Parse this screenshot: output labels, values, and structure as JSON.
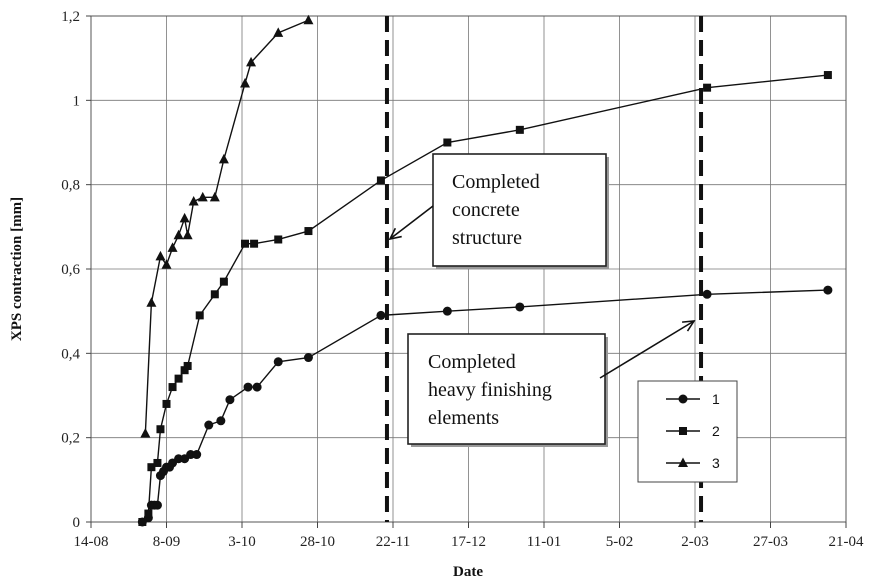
{
  "chart_data": {
    "type": "line",
    "xlabel": "Date",
    "ylabel": "XPS contraction [mm]",
    "x_tick_labels": [
      "14-08",
      "8-09",
      "3-10",
      "28-10",
      "22-11",
      "17-12",
      "11-01",
      "5-02",
      "2-03",
      "27-03",
      "21-04"
    ],
    "y_tick_labels": [
      "0",
      "0,2",
      "0,4",
      "0,6",
      "0,8",
      "1",
      "1,2"
    ],
    "xlim": [
      "14-08",
      "21-04"
    ],
    "ylim": [
      0,
      1.2
    ],
    "grid": true,
    "legend_position": "bottom-right",
    "series": [
      {
        "name": "1",
        "marker": "circle",
        "x": [
          "31-08",
          "02-09",
          "03-09",
          "04-09",
          "05-09",
          "06-09",
          "07-09",
          "08-09",
          "09-09",
          "10-09",
          "12-09",
          "14-09",
          "16-09",
          "18-09",
          "22-09",
          "26-09",
          "29-09",
          "05-10",
          "08-10",
          "15-10",
          "25-10",
          "18-11",
          "10-12",
          "03-01",
          "06-03",
          "15-04"
        ],
        "y": [
          0,
          0.01,
          0.04,
          0.04,
          0.04,
          0.11,
          0.12,
          0.13,
          0.13,
          0.14,
          0.15,
          0.15,
          0.16,
          0.16,
          0.23,
          0.24,
          0.29,
          0.32,
          0.32,
          0.38,
          0.39,
          0.49,
          0.5,
          0.51,
          0.54,
          0.55
        ]
      },
      {
        "name": "2",
        "marker": "square",
        "x": [
          "31-08",
          "02-09",
          "03-09",
          "05-09",
          "06-09",
          "08-09",
          "10-09",
          "12-09",
          "14-09",
          "15-09",
          "19-09",
          "24-09",
          "27-09",
          "04-10",
          "07-10",
          "15-10",
          "25-10",
          "18-11",
          "10-12",
          "03-01",
          "06-03",
          "15-04"
        ],
        "y": [
          0,
          0.02,
          0.13,
          0.14,
          0.22,
          0.28,
          0.32,
          0.34,
          0.36,
          0.37,
          0.49,
          0.54,
          0.57,
          0.66,
          0.66,
          0.67,
          0.69,
          0.81,
          0.9,
          0.93,
          1.03,
          1.06
        ]
      },
      {
        "name": "3",
        "marker": "triangle",
        "x": [
          "01-09",
          "03-09",
          "06-09",
          "08-09",
          "10-09",
          "12-09",
          "14-09",
          "15-09",
          "17-09",
          "20-09",
          "24-09",
          "27-09",
          "04-10",
          "06-10",
          "15-10",
          "25-10"
        ],
        "y": [
          0.21,
          0.52,
          0.63,
          0.61,
          0.65,
          0.68,
          0.72,
          0.68,
          0.76,
          0.77,
          0.77,
          0.86,
          1.04,
          1.09,
          1.16,
          1.19
        ]
      }
    ],
    "event_markers": [
      {
        "x": "20-11",
        "label": "Completed concrete structure",
        "lines": [
          "Completed",
          "concrete",
          "structure"
        ]
      },
      {
        "x": "04-03",
        "label": "Completed heavy finishing elements",
        "lines": [
          "Completed",
          "heavy finishing",
          "elements"
        ]
      }
    ]
  }
}
